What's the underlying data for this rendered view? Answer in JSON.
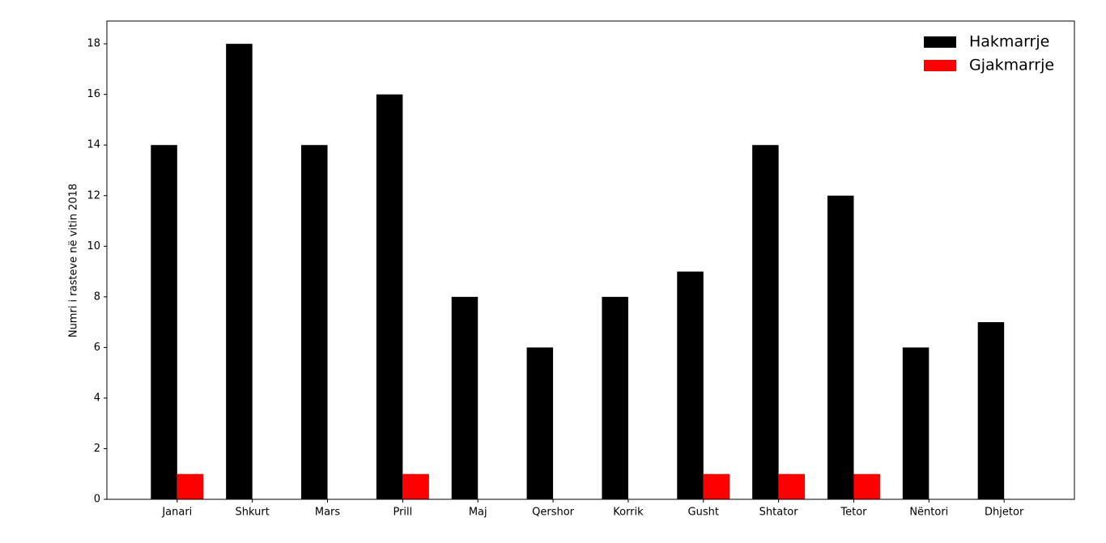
{
  "chart_data": {
    "type": "bar",
    "y_label": "Numri i rasteve në vitin 2018",
    "categories": [
      "Janari",
      "Shkurt",
      "Mars",
      "Prill",
      "Maj",
      "Qershor",
      "Korrik",
      "Gusht",
      "Shtator",
      "Tetor",
      "Nëntori",
      "Dhjetor"
    ],
    "series": [
      {
        "name": "Hakmarrje",
        "color": "#000000",
        "values": [
          14,
          18,
          14,
          16,
          8,
          6,
          8,
          9,
          14,
          12,
          6,
          7
        ]
      },
      {
        "name": "Gjakmarrje",
        "color": "#ff0000",
        "values": [
          1,
          0,
          0,
          1,
          0,
          0,
          0,
          1,
          1,
          1,
          0,
          0
        ]
      }
    ],
    "ylim": [
      0,
      18.9
    ],
    "yticks": [
      0,
      2,
      4,
      6,
      8,
      10,
      12,
      14,
      16,
      18
    ],
    "legend": "upper right",
    "grid": false
  }
}
